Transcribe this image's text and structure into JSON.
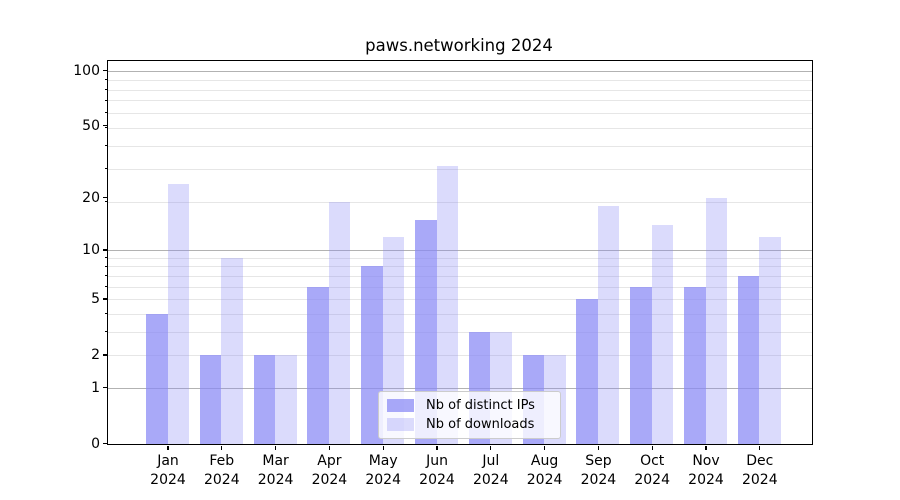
{
  "title": "paws.networking 2024",
  "chart_data": {
    "type": "bar",
    "title": "paws.networking 2024",
    "categories": [
      "Jan 2024",
      "Feb 2024",
      "Mar 2024",
      "Apr 2024",
      "May 2024",
      "Jun 2024",
      "Jul 2024",
      "Aug 2024",
      "Sep 2024",
      "Oct 2024",
      "Nov 2024",
      "Dec 2024"
    ],
    "series": [
      {
        "name": "Nb of distinct IPs",
        "values": [
          4,
          2,
          2,
          6,
          8,
          15,
          3,
          2,
          5,
          6,
          6,
          7
        ]
      },
      {
        "name": "Nb of downloads",
        "values": [
          24,
          9,
          2,
          19,
          12,
          30,
          3,
          2,
          18,
          14,
          20,
          12
        ]
      }
    ],
    "xlabel": "",
    "ylabel": "",
    "yscale": "log1p",
    "ylim": [
      0,
      113
    ],
    "y_tick_labels": [
      100,
      50,
      20,
      10,
      5,
      2,
      1,
      0
    ],
    "y_major_grid": [
      1,
      10,
      100
    ],
    "y_minor_grid": [
      2,
      3,
      4,
      5,
      6,
      7,
      8,
      9,
      19,
      29,
      39,
      49,
      59,
      69,
      79,
      89
    ],
    "grid": true,
    "legend_position": "lower center"
  },
  "colors": {
    "bar_distinct_ips": "rgba(136,136,245,0.72)",
    "bar_downloads": "rgba(136,136,245,0.30)",
    "grid_major": "#b2b2b2",
    "grid_minor": "#e6e6e6",
    "axis": "#000000",
    "legend_border": "#cccccc"
  }
}
